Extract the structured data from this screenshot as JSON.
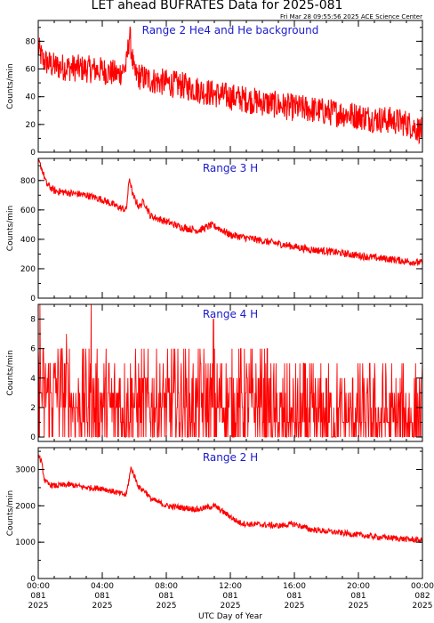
{
  "header": {
    "title": "LET ahead BUFRATES Data for 2025-081",
    "timestamp": "Fri Mar 28 09:55:56 2025 ACE Science Center"
  },
  "chart_data": [
    {
      "type": "line",
      "title": "Range 2 He4 and He background",
      "ylabel": "Counts/min",
      "ylim": [
        0,
        95
      ],
      "yticks": [
        0,
        20,
        40,
        60,
        80
      ],
      "x_domain_hours": [
        0,
        24
      ],
      "color": "#ff0000",
      "kind": "noisy",
      "x": [
        0,
        0.3,
        1,
        2,
        3,
        4,
        5,
        5.5,
        5.7,
        6,
        7,
        8,
        9,
        10,
        11,
        12,
        13,
        14,
        15,
        16,
        17,
        18,
        19,
        20,
        21,
        22,
        23,
        24
      ],
      "y": [
        75,
        66,
        62,
        61,
        60,
        59,
        56,
        62,
        85,
        56,
        52,
        50,
        48,
        45,
        42,
        40,
        38,
        36,
        34,
        32,
        31,
        29,
        28,
        26,
        24,
        23,
        21,
        15
      ],
      "noise_amplitude": 10
    },
    {
      "type": "line",
      "title": "Range 3 H",
      "ylabel": "Counts/min",
      "ylim": [
        0,
        950
      ],
      "yticks": [
        0,
        200,
        400,
        600,
        800
      ],
      "x_domain_hours": [
        0,
        24
      ],
      "color": "#ff0000",
      "kind": "smooth",
      "x": [
        0,
        0.2,
        0.5,
        1,
        2,
        3,
        4,
        5,
        5.5,
        5.7,
        5.9,
        6.3,
        6.6,
        7,
        8,
        9,
        10,
        10.8,
        11.2,
        12,
        13,
        14,
        15,
        16,
        17,
        18,
        19,
        20,
        21,
        22,
        23,
        24
      ],
      "y": [
        930,
        890,
        780,
        730,
        715,
        700,
        670,
        620,
        600,
        820,
        700,
        620,
        660,
        560,
        520,
        480,
        460,
        495,
        480,
        430,
        410,
        390,
        370,
        350,
        330,
        320,
        305,
        290,
        275,
        265,
        250,
        240
      ],
      "noise_amplitude": 25
    },
    {
      "type": "line",
      "title": "Range 4 H",
      "ylabel": "Counts/min",
      "ylim": [
        -0.3,
        9
      ],
      "yticks": [
        0,
        2,
        4,
        6,
        8
      ],
      "x_domain_hours": [
        0,
        24
      ],
      "color": "#ff0000",
      "kind": "discrete",
      "x": [
        0,
        4,
        6,
        11,
        18,
        24
      ],
      "y": [
        3.2,
        2.8,
        2.6,
        2.2,
        1.8,
        1.4
      ],
      "noise_amplitude": 0,
      "spikes": [
        [
          0.1,
          9
        ],
        [
          3.3,
          9
        ],
        [
          10.95,
          8
        ]
      ]
    },
    {
      "type": "line",
      "title": "Range 2 H",
      "ylabel": "Counts/min",
      "ylim": [
        0,
        3600
      ],
      "yticks": [
        0,
        1000,
        2000,
        3000
      ],
      "x_domain_hours": [
        0,
        24
      ],
      "color": "#ff0000",
      "kind": "smooth",
      "x": [
        0,
        0.2,
        0.4,
        0.6,
        1,
        2,
        3,
        4,
        5,
        5.5,
        5.8,
        6.3,
        6.7,
        7,
        8,
        9,
        10,
        11,
        11.5,
        12,
        12.5,
        13,
        14,
        15,
        16,
        17,
        18,
        19,
        20,
        21,
        22,
        23,
        24
      ],
      "y": [
        3400,
        3200,
        2700,
        2600,
        2550,
        2580,
        2500,
        2480,
        2350,
        2300,
        3050,
        2500,
        2400,
        2200,
        2000,
        1950,
        1900,
        2000,
        1850,
        1700,
        1550,
        1500,
        1480,
        1450,
        1500,
        1350,
        1300,
        1250,
        1200,
        1150,
        1120,
        1080,
        1050
      ],
      "noise_amplitude": 80
    }
  ],
  "x_axis": {
    "label": "UTC Day of Year",
    "ticks": [
      {
        "hour": 0,
        "time": "00:00",
        "doy": "081",
        "year": "2025"
      },
      {
        "hour": 4,
        "time": "04:00",
        "doy": "081",
        "year": "2025"
      },
      {
        "hour": 8,
        "time": "08:00",
        "doy": "081",
        "year": "2025"
      },
      {
        "hour": 12,
        "time": "12:00",
        "doy": "081",
        "year": "2025"
      },
      {
        "hour": 16,
        "time": "16:00",
        "doy": "081",
        "year": "2025"
      },
      {
        "hour": 20,
        "time": "20:00",
        "doy": "081",
        "year": "2025"
      },
      {
        "hour": 24,
        "time": "00:00",
        "doy": "082",
        "year": "2025"
      }
    ]
  }
}
